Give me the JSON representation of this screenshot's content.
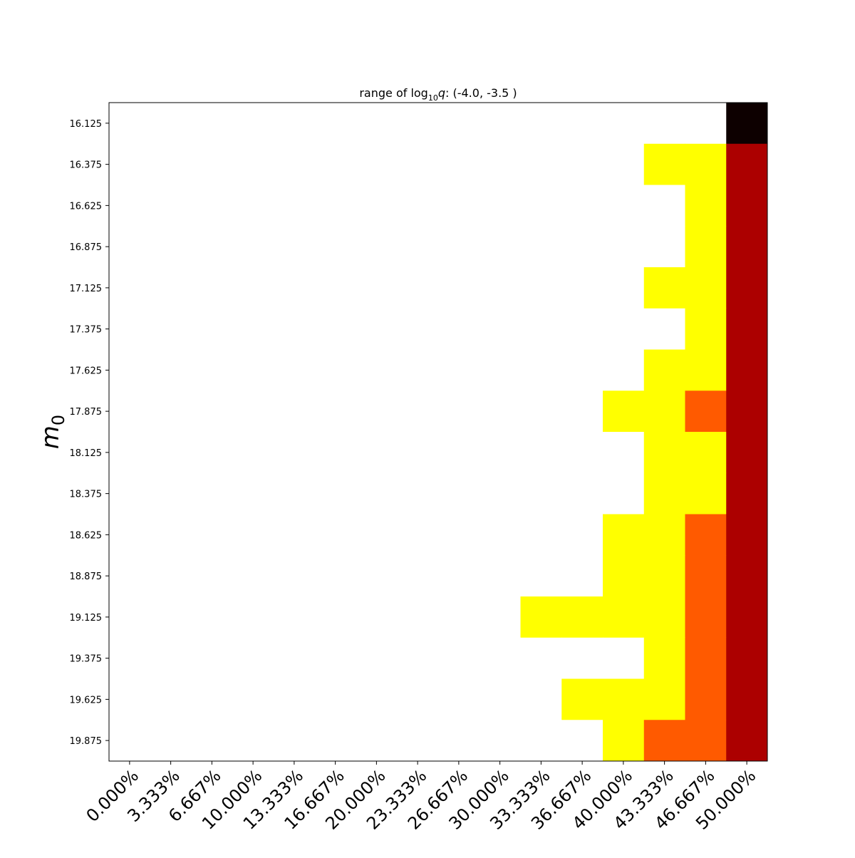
{
  "chart_data": {
    "type": "heatmap",
    "title": [
      "range of log",
      "10",
      "q",
      ": (-4.0, -3.5 )"
    ],
    "y_label": [
      "m",
      "0"
    ],
    "x": [
      "0.000%",
      "3.333%",
      "6.667%",
      "10.000%",
      "13.333%",
      "16.667%",
      "20.000%",
      "23.333%",
      "26.667%",
      "30.000%",
      "33.333%",
      "36.667%",
      "40.000%",
      "43.333%",
      "46.667%",
      "50.000%"
    ],
    "y": [
      "16.125",
      "16.375",
      "16.625",
      "16.875",
      "17.125",
      "17.375",
      "17.625",
      "17.875",
      "18.125",
      "18.375",
      "18.625",
      "18.875",
      "19.125",
      "19.375",
      "19.625",
      "19.875"
    ],
    "colors": [
      "#ffffff",
      "#ffff00",
      "#ff5a00",
      "#ac0000",
      "#0d0000"
    ],
    "values": [
      [
        0,
        0,
        0,
        0,
        0,
        0,
        0,
        0,
        0,
        0,
        0,
        0,
        0,
        0,
        0,
        4
      ],
      [
        0,
        0,
        0,
        0,
        0,
        0,
        0,
        0,
        0,
        0,
        0,
        0,
        0,
        1,
        1,
        3
      ],
      [
        0,
        0,
        0,
        0,
        0,
        0,
        0,
        0,
        0,
        0,
        0,
        0,
        0,
        0,
        1,
        3
      ],
      [
        0,
        0,
        0,
        0,
        0,
        0,
        0,
        0,
        0,
        0,
        0,
        0,
        0,
        0,
        1,
        3
      ],
      [
        0,
        0,
        0,
        0,
        0,
        0,
        0,
        0,
        0,
        0,
        0,
        0,
        0,
        1,
        1,
        3
      ],
      [
        0,
        0,
        0,
        0,
        0,
        0,
        0,
        0,
        0,
        0,
        0,
        0,
        0,
        0,
        1,
        3
      ],
      [
        0,
        0,
        0,
        0,
        0,
        0,
        0,
        0,
        0,
        0,
        0,
        0,
        0,
        1,
        1,
        3
      ],
      [
        0,
        0,
        0,
        0,
        0,
        0,
        0,
        0,
        0,
        0,
        0,
        0,
        1,
        1,
        2,
        3
      ],
      [
        0,
        0,
        0,
        0,
        0,
        0,
        0,
        0,
        0,
        0,
        0,
        0,
        0,
        1,
        1,
        3
      ],
      [
        0,
        0,
        0,
        0,
        0,
        0,
        0,
        0,
        0,
        0,
        0,
        0,
        0,
        1,
        1,
        3
      ],
      [
        0,
        0,
        0,
        0,
        0,
        0,
        0,
        0,
        0,
        0,
        0,
        0,
        1,
        1,
        2,
        3
      ],
      [
        0,
        0,
        0,
        0,
        0,
        0,
        0,
        0,
        0,
        0,
        0,
        0,
        1,
        1,
        2,
        3
      ],
      [
        0,
        0,
        0,
        0,
        0,
        0,
        0,
        0,
        0,
        0,
        1,
        1,
        1,
        1,
        2,
        3
      ],
      [
        0,
        0,
        0,
        0,
        0,
        0,
        0,
        0,
        0,
        0,
        0,
        0,
        0,
        1,
        2,
        3
      ],
      [
        0,
        0,
        0,
        0,
        0,
        0,
        0,
        0,
        0,
        0,
        0,
        1,
        1,
        1,
        2,
        3
      ],
      [
        0,
        0,
        0,
        0,
        0,
        0,
        0,
        0,
        0,
        0,
        0,
        0,
        1,
        2,
        2,
        3
      ]
    ]
  }
}
